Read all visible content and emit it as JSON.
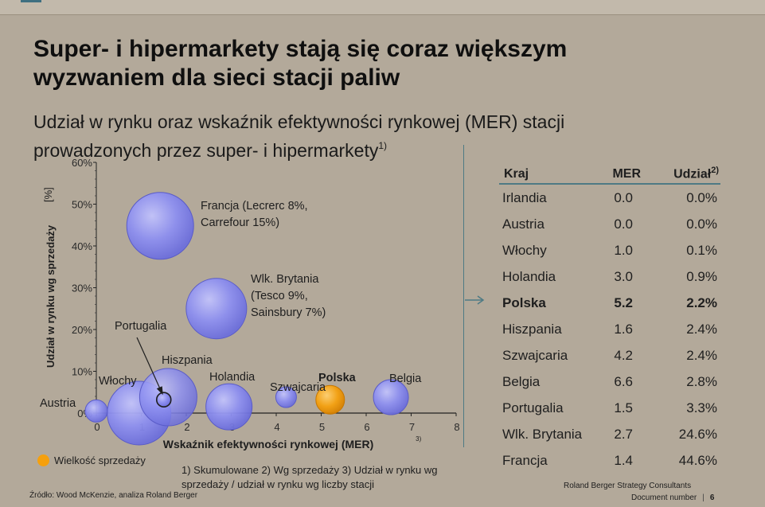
{
  "title": "Super- i hipermarkety stają się coraz większym wyzwaniem dla sieci stacji paliw",
  "subtitle": "Udział w rynku oraz wskaźnik efektywności rynkowej (MER) stacji prowadzonych przez super- i hipermarkety",
  "subtitle_sup": "1)",
  "colors": {
    "bubble": "#8d8ff0",
    "bubble_edge": "#5a5cc8",
    "highlight": "#f5a00e",
    "accent": "#4e7a84"
  },
  "chart_data": {
    "type": "scatter",
    "xlabel": "Wskaźnik efektywności rynkowej (MER)",
    "xlabel_sup": "3)",
    "ylabel": "Udział w rynku wg sprzedaży",
    "yunit": "[%]",
    "xlim": [
      0,
      8
    ],
    "ylim": [
      0,
      60
    ],
    "xticks": [
      "0",
      "1",
      "2",
      "3",
      "4",
      "5",
      "6",
      "7",
      "8"
    ],
    "yticks": [
      "0%",
      "10%",
      "20%",
      "30%",
      "40%",
      "50%",
      "60%"
    ],
    "legend": "Wielkość sprzedaży",
    "points": [
      {
        "label": "Austria",
        "x": 0.0,
        "y": 0.0,
        "size": 3,
        "highlight": false
      },
      {
        "label": "Włochy",
        "x": 1.0,
        "y": 0.1,
        "size": 8,
        "highlight": false
      },
      {
        "label": "Hiszpania",
        "x": 1.6,
        "y": 2.4,
        "size": 8,
        "highlight": false
      },
      {
        "label": "Portugalia",
        "x": 1.5,
        "y": 3.3,
        "size": 2,
        "highlight": false
      },
      {
        "label": "Holandia",
        "x": 3.0,
        "y": 0.9,
        "size": 6,
        "highlight": false
      },
      {
        "label": "Szwajcaria",
        "x": 4.2,
        "y": 2.4,
        "size": 3,
        "highlight": false
      },
      {
        "label": "Polska",
        "x": 5.2,
        "y": 2.2,
        "size": 4,
        "highlight": true
      },
      {
        "label": "Belgia",
        "x": 6.6,
        "y": 2.8,
        "size": 5,
        "highlight": false
      },
      {
        "label": "Wlk. Brytania",
        "label_lines": [
          "Wlk. Brytania",
          "(Tesco 9%,",
          "Sainsbury 7%)"
        ],
        "x": 2.7,
        "y": 24.6,
        "size": 8,
        "highlight": false
      },
      {
        "label": "Francja",
        "label_lines": [
          "Francja (Lecrerc 8%,",
          "Carrefour 15%)"
        ],
        "x": 1.4,
        "y": 44.6,
        "size": 8.5,
        "highlight": false
      }
    ]
  },
  "table": {
    "headers": [
      "Kraj",
      "MER",
      "Udział"
    ],
    "header_sup": "2)",
    "rows": [
      {
        "kraj": "Irlandia",
        "mer": "0.0",
        "udzial": "0.0%",
        "bold": false
      },
      {
        "kraj": "Austria",
        "mer": "0.0",
        "udzial": "0.0%",
        "bold": false
      },
      {
        "kraj": "Włochy",
        "mer": "1.0",
        "udzial": "0.1%",
        "bold": false
      },
      {
        "kraj": "Holandia",
        "mer": "3.0",
        "udzial": "0.9%",
        "bold": false
      },
      {
        "kraj": "Polska",
        "mer": "5.2",
        "udzial": "2.2%",
        "bold": true
      },
      {
        "kraj": "Hiszpania",
        "mer": "1.6",
        "udzial": "2.4%",
        "bold": false
      },
      {
        "kraj": "Szwajcaria",
        "mer": "4.2",
        "udzial": "2.4%",
        "bold": false
      },
      {
        "kraj": "Belgia",
        "mer": "6.6",
        "udzial": "2.8%",
        "bold": false
      },
      {
        "kraj": "Portugalia",
        "mer": "1.5",
        "udzial": "3.3%",
        "bold": false
      },
      {
        "kraj": "Wlk. Brytania",
        "mer": "2.7",
        "udzial": "24.6%",
        "bold": false
      },
      {
        "kraj": "Francja",
        "mer": "1.4",
        "udzial": "44.6%",
        "bold": false
      }
    ]
  },
  "footnote": "1) Skumulowane   2) Wg sprzedaży 3) Udział w rynku wg sprzedaży / udział w rynku wg liczby stacji",
  "source": "Źródło: Wood McKenzie, analiza Roland Berger",
  "brand": "Roland Berger Strategy Consultants",
  "doc_label": "Document number",
  "page_number": "6"
}
